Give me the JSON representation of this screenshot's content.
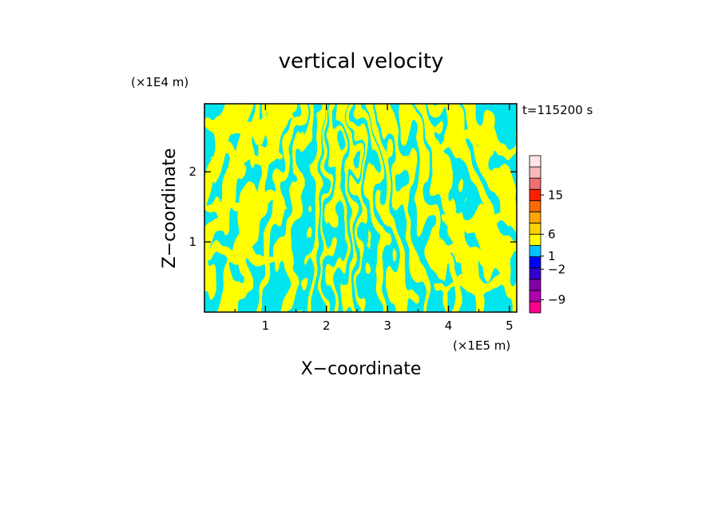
{
  "chart_data": {
    "type": "heatmap",
    "title": "vertical velocity",
    "xlabel": "X−coordinate",
    "ylabel": "Z−coordinate",
    "x_unit": "(×1E5 m)",
    "y_unit": "(×1E4 m)",
    "time_label": "t=115200 s",
    "x_ticks": [
      "1",
      "2",
      "3",
      "4",
      "5"
    ],
    "x_tick_values": [
      1,
      2,
      3,
      4,
      5
    ],
    "y_ticks": [
      "1",
      "2"
    ],
    "y_tick_values": [
      1,
      2
    ],
    "xlim": [
      0,
      5.12
    ],
    "ylim": [
      0,
      2.97
    ],
    "field_colors": {
      "positive": "#ffff00",
      "negative": "#00e5ee"
    },
    "colorbar": {
      "labels": [
        "15",
        "6",
        "1",
        "−2",
        "−9"
      ],
      "label_values": [
        15,
        6,
        1,
        -2,
        -9
      ],
      "levels": [
        {
          "color": "#ff0090"
        },
        {
          "color": "#b000b0"
        },
        {
          "color": "#8000a8"
        },
        {
          "color": "#3300cc"
        },
        {
          "color": "#0000ff"
        },
        {
          "color": "#00bfff"
        },
        {
          "color": "#ffff00"
        },
        {
          "color": "#ffd200"
        },
        {
          "color": "#ffa500"
        },
        {
          "color": "#ff6a00"
        },
        {
          "color": "#ff2000"
        },
        {
          "color": "#f07070"
        },
        {
          "color": "#f8b8b8"
        },
        {
          "color": "#ffe6e6"
        }
      ]
    }
  }
}
